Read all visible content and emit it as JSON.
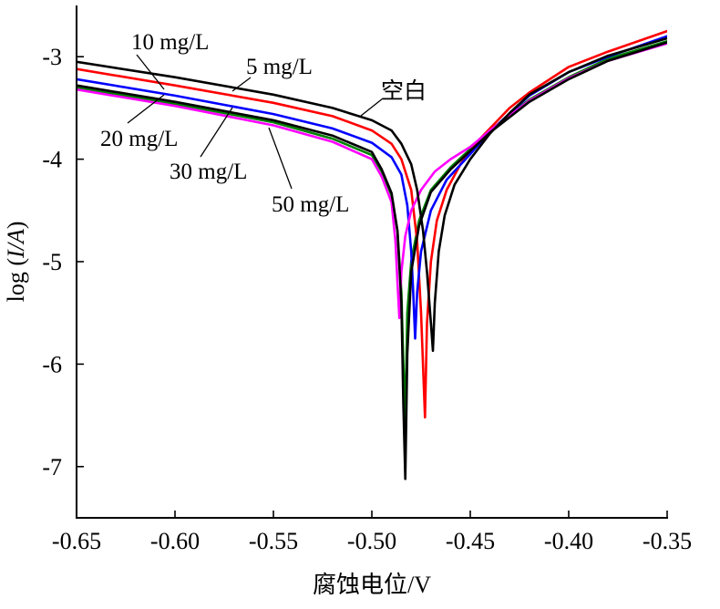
{
  "chart_data": {
    "type": "line",
    "title": "",
    "xlabel": "腐蚀电位/V",
    "ylabel": "log (I/A)",
    "xlim": [
      -0.65,
      -0.35
    ],
    "ylim": [
      -7.5,
      -2.5
    ],
    "x_ticks": [
      "-0.65",
      "-0.60",
      "-0.55",
      "-0.50",
      "-0.45",
      "-0.40",
      "-0.35"
    ],
    "y_ticks": [
      "-3",
      "-4",
      "-5",
      "-6",
      "-7"
    ],
    "grid": false,
    "legend": "none",
    "series": [
      {
        "name": "空白",
        "color": "#000000",
        "corrosion_potential": -0.469,
        "points": [
          [
            -0.65,
            -3.05
          ],
          [
            -0.6,
            -3.2
          ],
          [
            -0.55,
            -3.37
          ],
          [
            -0.52,
            -3.5
          ],
          [
            -0.5,
            -3.62
          ],
          [
            -0.49,
            -3.72
          ],
          [
            -0.485,
            -3.85
          ],
          [
            -0.48,
            -4.05
          ],
          [
            -0.477,
            -4.3
          ],
          [
            -0.474,
            -4.7
          ],
          [
            -0.472,
            -5.1
          ],
          [
            -0.47,
            -5.6
          ],
          [
            -0.469,
            -5.87
          ],
          [
            -0.468,
            -5.4
          ],
          [
            -0.466,
            -4.9
          ],
          [
            -0.463,
            -4.55
          ],
          [
            -0.458,
            -4.25
          ],
          [
            -0.45,
            -4.0
          ],
          [
            -0.44,
            -3.75
          ],
          [
            -0.43,
            -3.55
          ],
          [
            -0.42,
            -3.37
          ],
          [
            -0.4,
            -3.15
          ],
          [
            -0.38,
            -2.99
          ],
          [
            -0.35,
            -2.82
          ]
        ]
      },
      {
        "name": "5 mg/L",
        "color": "#ff0000",
        "corrosion_potential": -0.473,
        "points": [
          [
            -0.65,
            -3.12
          ],
          [
            -0.6,
            -3.28
          ],
          [
            -0.55,
            -3.45
          ],
          [
            -0.52,
            -3.58
          ],
          [
            -0.5,
            -3.72
          ],
          [
            -0.49,
            -3.85
          ],
          [
            -0.485,
            -4.0
          ],
          [
            -0.48,
            -4.3
          ],
          [
            -0.477,
            -4.8
          ],
          [
            -0.475,
            -5.5
          ],
          [
            -0.473,
            -6.52
          ],
          [
            -0.472,
            -5.6
          ],
          [
            -0.47,
            -5.0
          ],
          [
            -0.467,
            -4.6
          ],
          [
            -0.462,
            -4.3
          ],
          [
            -0.455,
            -4.05
          ],
          [
            -0.445,
            -3.8
          ],
          [
            -0.43,
            -3.5
          ],
          [
            -0.42,
            -3.35
          ],
          [
            -0.4,
            -3.1
          ],
          [
            -0.38,
            -2.95
          ],
          [
            -0.35,
            -2.75
          ]
        ]
      },
      {
        "name": "10 mg/L",
        "color": "#0000ff",
        "corrosion_potential": -0.478,
        "points": [
          [
            -0.65,
            -3.22
          ],
          [
            -0.6,
            -3.38
          ],
          [
            -0.55,
            -3.56
          ],
          [
            -0.52,
            -3.7
          ],
          [
            -0.5,
            -3.84
          ],
          [
            -0.49,
            -3.98
          ],
          [
            -0.485,
            -4.15
          ],
          [
            -0.482,
            -4.45
          ],
          [
            -0.48,
            -4.9
          ],
          [
            -0.479,
            -5.3
          ],
          [
            -0.478,
            -5.75
          ],
          [
            -0.477,
            -5.3
          ],
          [
            -0.475,
            -4.9
          ],
          [
            -0.47,
            -4.5
          ],
          [
            -0.462,
            -4.2
          ],
          [
            -0.45,
            -3.95
          ],
          [
            -0.44,
            -3.73
          ],
          [
            -0.42,
            -3.38
          ],
          [
            -0.4,
            -3.15
          ],
          [
            -0.38,
            -3.0
          ],
          [
            -0.35,
            -2.8
          ]
        ]
      },
      {
        "name": "20 mg/L",
        "color": "#008000",
        "corrosion_potential": -0.484,
        "points": [
          [
            -0.65,
            -3.3
          ],
          [
            -0.6,
            -3.46
          ],
          [
            -0.55,
            -3.64
          ],
          [
            -0.52,
            -3.8
          ],
          [
            -0.5,
            -3.96
          ],
          [
            -0.495,
            -4.12
          ],
          [
            -0.49,
            -4.35
          ],
          [
            -0.487,
            -4.7
          ],
          [
            -0.485,
            -5.3
          ],
          [
            -0.484,
            -6.0
          ],
          [
            -0.483,
            -6.55
          ],
          [
            -0.482,
            -5.5
          ],
          [
            -0.48,
            -5.0
          ],
          [
            -0.476,
            -4.6
          ],
          [
            -0.47,
            -4.3
          ],
          [
            -0.46,
            -4.08
          ],
          [
            -0.45,
            -3.9
          ],
          [
            -0.44,
            -3.72
          ],
          [
            -0.42,
            -3.42
          ],
          [
            -0.4,
            -3.2
          ],
          [
            -0.38,
            -3.02
          ],
          [
            -0.35,
            -2.85
          ]
        ]
      },
      {
        "name": "30 mg/L",
        "color": "#000000",
        "corrosion_potential": -0.484,
        "points": [
          [
            -0.65,
            -3.28
          ],
          [
            -0.6,
            -3.44
          ],
          [
            -0.55,
            -3.62
          ],
          [
            -0.52,
            -3.77
          ],
          [
            -0.5,
            -3.93
          ],
          [
            -0.495,
            -4.1
          ],
          [
            -0.49,
            -4.33
          ],
          [
            -0.487,
            -4.7
          ],
          [
            -0.485,
            -5.4
          ],
          [
            -0.484,
            -6.4
          ],
          [
            -0.483,
            -7.12
          ],
          [
            -0.482,
            -5.9
          ],
          [
            -0.48,
            -5.1
          ],
          [
            -0.476,
            -4.65
          ],
          [
            -0.47,
            -4.32
          ],
          [
            -0.46,
            -4.1
          ],
          [
            -0.45,
            -3.92
          ],
          [
            -0.44,
            -3.74
          ],
          [
            -0.42,
            -3.44
          ],
          [
            -0.4,
            -3.22
          ],
          [
            -0.38,
            -3.04
          ],
          [
            -0.35,
            -2.86
          ]
        ]
      },
      {
        "name": "50 mg/L",
        "color": "#ff00ff",
        "corrosion_potential": -0.486,
        "points": [
          [
            -0.65,
            -3.32
          ],
          [
            -0.6,
            -3.48
          ],
          [
            -0.55,
            -3.67
          ],
          [
            -0.52,
            -3.83
          ],
          [
            -0.5,
            -4.0
          ],
          [
            -0.495,
            -4.17
          ],
          [
            -0.49,
            -4.42
          ],
          [
            -0.488,
            -4.8
          ],
          [
            -0.487,
            -5.2
          ],
          [
            -0.486,
            -5.55
          ],
          [
            -0.485,
            -5.1
          ],
          [
            -0.483,
            -4.75
          ],
          [
            -0.48,
            -4.5
          ],
          [
            -0.475,
            -4.3
          ],
          [
            -0.468,
            -4.12
          ],
          [
            -0.46,
            -4.0
          ],
          [
            -0.45,
            -3.88
          ],
          [
            -0.44,
            -3.72
          ],
          [
            -0.42,
            -3.43
          ],
          [
            -0.4,
            -3.21
          ],
          [
            -0.38,
            -3.04
          ],
          [
            -0.35,
            -2.87
          ]
        ]
      }
    ],
    "annotations": [
      {
        "text": "10 mg/L",
        "series": "10 mg/L"
      },
      {
        "text": "5 mg/L",
        "series": "5 mg/L"
      },
      {
        "text": "空白",
        "series": "空白"
      },
      {
        "text": "20 mg/L",
        "series": "20 mg/L"
      },
      {
        "text": "30 mg/L",
        "series": "30 mg/L"
      },
      {
        "text": "50 mg/L",
        "series": "50 mg/L"
      }
    ]
  }
}
